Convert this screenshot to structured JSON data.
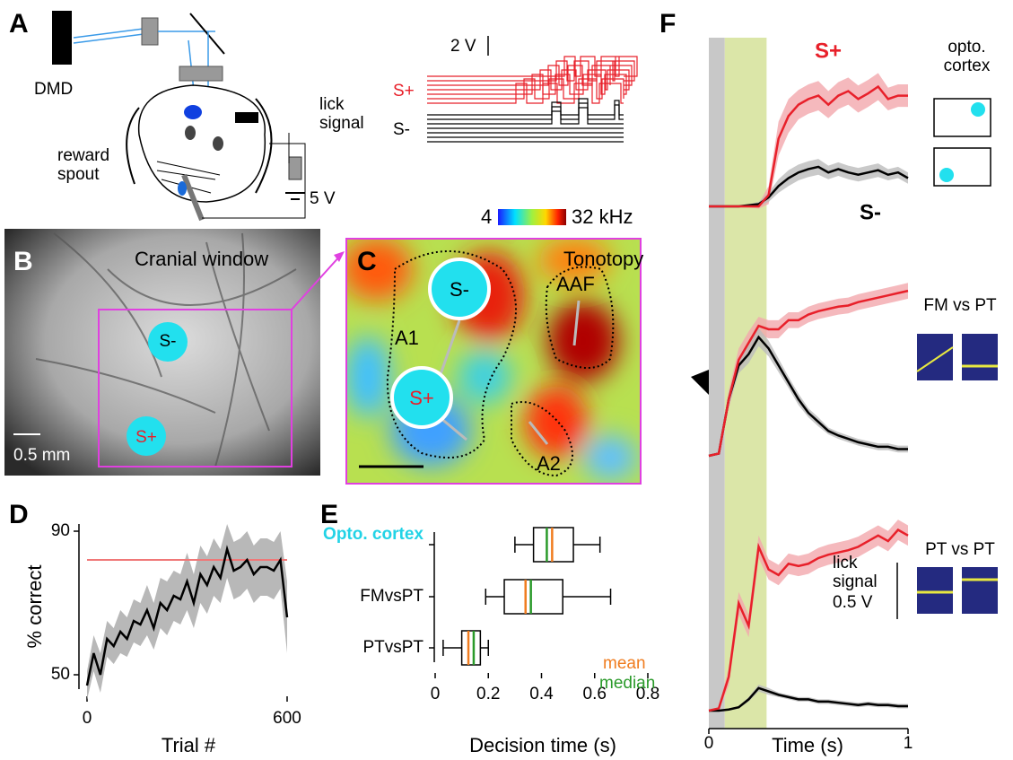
{
  "panel_a": {
    "label": "A",
    "dmd": "DMD",
    "reward_spout": "reward spout",
    "lick_signal": "lick signal",
    "supply_voltage": "5 V",
    "scale_bar": "2 V",
    "s_plus": "S+",
    "s_minus": "S-"
  },
  "panel_b": {
    "label": "B",
    "title": "Cranial window",
    "s_minus": "S-",
    "s_plus": "S+",
    "scale_bar": "0.5 mm"
  },
  "panel_c": {
    "label": "C",
    "title": "Tonotopy",
    "s_minus": "S-",
    "s_plus": "S+",
    "areas": [
      "A1",
      "AAF",
      "A2"
    ],
    "colorbar_low": "4",
    "colorbar_high": "32 kHz"
  },
  "chart_data": [
    {
      "panel_label": "D",
      "type": "line",
      "x": [
        0,
        20,
        40,
        60,
        80,
        100,
        120,
        140,
        160,
        180,
        200,
        220,
        240,
        260,
        280,
        300,
        320,
        340,
        360,
        380,
        400,
        420,
        440,
        460,
        480,
        500,
        520,
        540,
        560,
        580,
        600
      ],
      "values": [
        47,
        56,
        50,
        60,
        58,
        62,
        60,
        65,
        64,
        68,
        63,
        70,
        68,
        72,
        71,
        76,
        70,
        78,
        75,
        80,
        77,
        85,
        79,
        80,
        82,
        78,
        80,
        80,
        79,
        82,
        66
      ],
      "lower": [
        43,
        51,
        45,
        55,
        53,
        56,
        55,
        59,
        58,
        61,
        57,
        63,
        61,
        65,
        64,
        68,
        63,
        70,
        67,
        72,
        70,
        77,
        71,
        72,
        74,
        70,
        72,
        72,
        71,
        74,
        56
      ],
      "upper": [
        51,
        61,
        56,
        65,
        63,
        68,
        66,
        71,
        70,
        75,
        70,
        77,
        76,
        79,
        78,
        84,
        78,
        86,
        83,
        88,
        85,
        92,
        87,
        88,
        90,
        86,
        88,
        88,
        87,
        90,
        76
      ],
      "color": "#000000",
      "band_color": "#b8b8b8",
      "reference_line": {
        "value": 82,
        "color": "#f07878"
      },
      "xlim": [
        0,
        600
      ],
      "xticks": [
        0,
        600
      ],
      "ylim": [
        46,
        92
      ],
      "yticks": [
        50,
        90
      ],
      "xlabel": "Trial #",
      "ylabel": "% correct"
    },
    {
      "panel_label": "E",
      "type": "box",
      "categories": [
        "Opto. cortex",
        "FMvsPT",
        "PTvsPT"
      ],
      "category_colors": [
        "#22d3e6",
        "#000000",
        "#000000"
      ],
      "boxes": [
        {
          "whisker_low": 0.3,
          "q1": 0.37,
          "median": 0.42,
          "mean": 0.44,
          "q3": 0.52,
          "whisker_high": 0.62
        },
        {
          "whisker_low": 0.19,
          "q1": 0.26,
          "median": 0.36,
          "mean": 0.34,
          "q3": 0.48,
          "whisker_high": 0.66
        },
        {
          "whisker_low": 0.03,
          "q1": 0.1,
          "median": 0.145,
          "mean": 0.125,
          "q3": 0.17,
          "whisker_high": 0.2
        }
      ],
      "mean_color": "#f07d20",
      "median_color": "#2a9a2a",
      "legend": {
        "mean": "mean",
        "median": "median"
      },
      "xlim": [
        0,
        0.8
      ],
      "xticks": [
        0,
        0.2,
        0.4,
        0.6,
        0.8
      ],
      "xlabel": "Decision time (s)"
    },
    {
      "panel_label": "F",
      "type": "line",
      "x": [
        0,
        0.05,
        0.1,
        0.15,
        0.2,
        0.25,
        0.3,
        0.35,
        0.4,
        0.45,
        0.5,
        0.55,
        0.6,
        0.65,
        0.7,
        0.75,
        0.8,
        0.85,
        0.9,
        0.95,
        1
      ],
      "xlim": [
        0,
        1
      ],
      "xticks": [
        0,
        1
      ],
      "ylim": [
        -0.15,
        1.7
      ],
      "xlabel": "Time (s)",
      "shaded_regions": [
        {
          "start": 0,
          "end": 0.08,
          "color": "#c8c8c8"
        },
        {
          "start": 0.08,
          "end": 0.29,
          "color": "#dbe6a8"
        }
      ],
      "scale_bar": {
        "value": 0.5,
        "title": "lick signal",
        "label": "0.5 V"
      },
      "panels": [
        {
          "inset_label": "opto. cortex",
          "series": [
            {
              "name": "S+",
              "color": "#e8202a",
              "band_color": "#f2a8ac",
              "values": [
                0,
                0,
                0,
                0,
                0,
                0,
                0.1,
                0.6,
                0.8,
                0.9,
                0.95,
                0.98,
                0.9,
                0.98,
                1.02,
                0.95,
                1.0,
                1.06,
                0.95,
                0.98,
                0.98
              ],
              "error": [
                0,
                0,
                0,
                0,
                0.01,
                0.02,
                0.08,
                0.15,
                0.15,
                0.13,
                0.13,
                0.13,
                0.12,
                0.12,
                0.12,
                0.12,
                0.12,
                0.12,
                0.1,
                0.1,
                0.1
              ]
            },
            {
              "name": "S-",
              "color": "#000000",
              "band_color": "#bcbcbc",
              "values": [
                0,
                0,
                0,
                0,
                0.01,
                0.02,
                0.08,
                0.18,
                0.25,
                0.3,
                0.33,
                0.35,
                0.3,
                0.33,
                0.3,
                0.28,
                0.3,
                0.32,
                0.28,
                0.3,
                0.25
              ],
              "error": [
                0,
                0,
                0,
                0,
                0.01,
                0.02,
                0.04,
                0.06,
                0.07,
                0.07,
                0.07,
                0.07,
                0.06,
                0.06,
                0.06,
                0.06,
                0.06,
                0.06,
                0.05,
                0.05,
                0.05
              ]
            }
          ]
        },
        {
          "inset_label": "FM vs PT",
          "series": [
            {
              "color": "#e8202a",
              "band_color": "#f2a8ac",
              "values": [
                0,
                0.02,
                0.5,
                0.85,
                1.0,
                1.15,
                1.12,
                1.12,
                1.2,
                1.2,
                1.25,
                1.28,
                1.3,
                1.32,
                1.33,
                1.36,
                1.38,
                1.4,
                1.42,
                1.44,
                1.46
              ],
              "error": [
                0,
                0.01,
                0.08,
                0.1,
                0.1,
                0.08,
                0.08,
                0.08,
                0.07,
                0.07,
                0.07,
                0.07,
                0.07,
                0.07,
                0.07,
                0.07,
                0.07,
                0.07,
                0.07,
                0.07,
                0.07
              ]
            },
            {
              "color": "#000000",
              "band_color": "#bcbcbc",
              "values": [
                0,
                0.02,
                0.5,
                0.8,
                0.9,
                1.05,
                0.95,
                0.8,
                0.65,
                0.5,
                0.38,
                0.3,
                0.22,
                0.18,
                0.15,
                0.12,
                0.1,
                0.08,
                0.08,
                0.06,
                0.06
              ],
              "error": [
                0,
                0.01,
                0.06,
                0.07,
                0.08,
                0.08,
                0.07,
                0.06,
                0.05,
                0.05,
                0.04,
                0.04,
                0.03,
                0.03,
                0.03,
                0.03,
                0.03,
                0.03,
                0.03,
                0.03,
                0.03
              ]
            }
          ]
        },
        {
          "inset_label": "PT vs PT",
          "series": [
            {
              "color": "#e8202a",
              "band_color": "#f2a8ac",
              "values": [
                0,
                0.02,
                0.3,
                0.95,
                0.75,
                1.45,
                1.25,
                1.2,
                1.3,
                1.28,
                1.3,
                1.35,
                1.38,
                1.4,
                1.42,
                1.45,
                1.5,
                1.55,
                1.5,
                1.6,
                1.55
              ],
              "error": [
                0,
                0.01,
                0.08,
                0.1,
                0.1,
                0.1,
                0.09,
                0.09,
                0.09,
                0.09,
                0.09,
                0.09,
                0.09,
                0.09,
                0.09,
                0.09,
                0.09,
                0.09,
                0.09,
                0.09,
                0.09
              ]
            },
            {
              "color": "#000000",
              "band_color": "#bcbcbc",
              "values": [
                0,
                0,
                0.01,
                0.03,
                0.1,
                0.2,
                0.17,
                0.14,
                0.12,
                0.1,
                0.1,
                0.08,
                0.08,
                0.07,
                0.06,
                0.05,
                0.06,
                0.05,
                0.05,
                0.04,
                0.04
              ],
              "error": [
                0,
                0,
                0.01,
                0.01,
                0.02,
                0.03,
                0.03,
                0.02,
                0.02,
                0.02,
                0.02,
                0.02,
                0.02,
                0.02,
                0.02,
                0.02,
                0.02,
                0.02,
                0.02,
                0.02,
                0.02
              ]
            }
          ]
        }
      ]
    }
  ]
}
